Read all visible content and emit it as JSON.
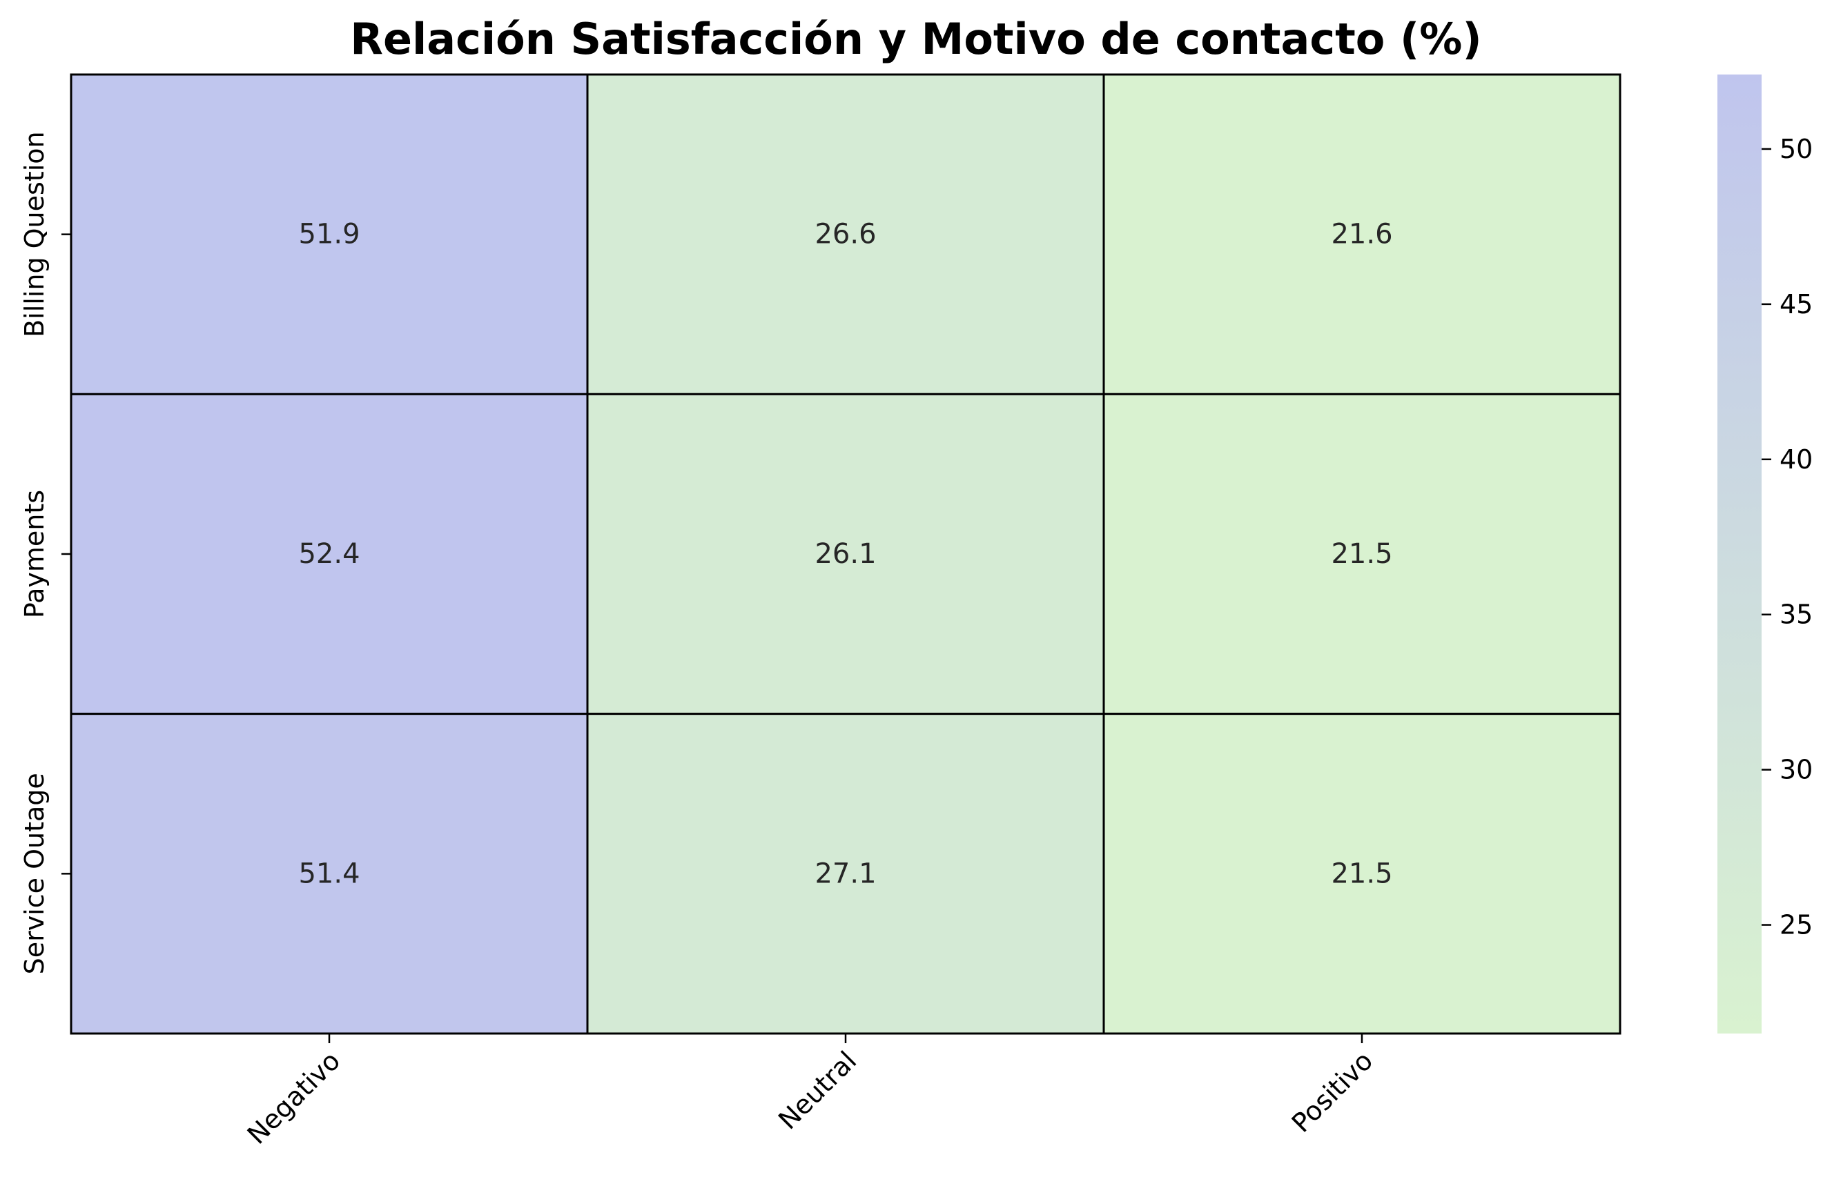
{
  "chart_data": {
    "type": "heatmap",
    "title": "Relación Satisfacción y Motivo de contacto (%)",
    "xlabel": "",
    "ylabel": "",
    "x_categories": [
      "Negativo",
      "Neutral",
      "Positivo"
    ],
    "y_categories": [
      "Billing Question",
      "Payments",
      "Service Outage"
    ],
    "values": [
      [
        51.9,
        26.6,
        21.6
      ],
      [
        52.4,
        26.1,
        21.5
      ],
      [
        51.4,
        27.1,
        21.5
      ]
    ],
    "colorbar": {
      "min": 21.5,
      "max": 52.4,
      "ticks": [
        25,
        30,
        35,
        40,
        45,
        50
      ],
      "low_color": "#d9f2d0",
      "high_color": "#c0c5ee"
    },
    "grid": true,
    "cell_border_color": "#000000"
  }
}
